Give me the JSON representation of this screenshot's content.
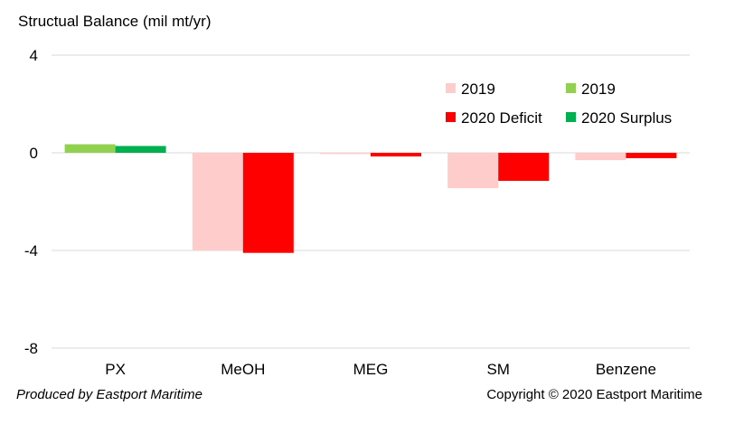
{
  "chart_data": {
    "type": "bar",
    "title": "",
    "ylabel": "Structual Balance (mil mt/yr)",
    "xlabel": "",
    "ylim": [
      -8,
      4
    ],
    "yticks": [
      4,
      0,
      -4,
      -8
    ],
    "grid": true,
    "categories": [
      "PX",
      "MeOH",
      "MEG",
      "SM",
      "Benzene"
    ],
    "series": [
      {
        "name": "2019",
        "role": "deficit-2019",
        "color": "#ffcccc",
        "values": [
          0,
          -4.0,
          -0.05,
          -1.45,
          -0.3
        ]
      },
      {
        "name": "2020 Deficit",
        "role": "deficit-2020",
        "color": "#ff0000",
        "values": [
          0,
          -4.1,
          -0.15,
          -1.15,
          -0.22
        ]
      },
      {
        "name": "2019",
        "role": "surplus-2019",
        "color": "#92d050",
        "values": [
          0.35,
          0,
          0,
          0,
          0
        ]
      },
      {
        "name": "2020 Surplus",
        "role": "surplus-2020",
        "color": "#00b050",
        "values": [
          0.28,
          0,
          0,
          0,
          0
        ]
      }
    ],
    "legend_position": "top-right"
  },
  "footer": {
    "produced_by": "Produced by Eastport Maritime",
    "copyright": "Copyright © 2020 Eastport Maritime"
  }
}
